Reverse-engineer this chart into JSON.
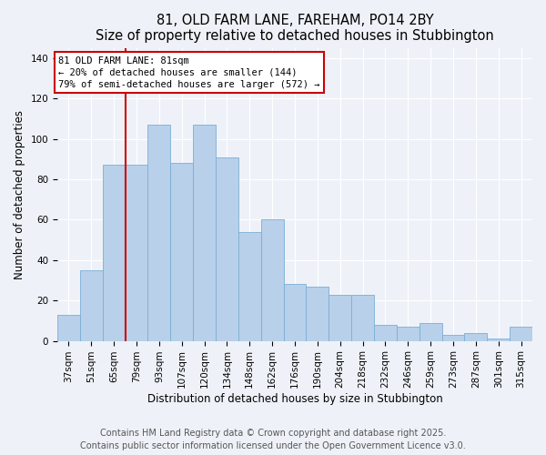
{
  "title": "81, OLD FARM LANE, FAREHAM, PO14 2BY",
  "subtitle": "Size of property relative to detached houses in Stubbington",
  "xlabel": "Distribution of detached houses by size in Stubbington",
  "ylabel": "Number of detached properties",
  "categories": [
    "37sqm",
    "51sqm",
    "65sqm",
    "79sqm",
    "93sqm",
    "107sqm",
    "120sqm",
    "134sqm",
    "148sqm",
    "162sqm",
    "176sqm",
    "190sqm",
    "204sqm",
    "218sqm",
    "232sqm",
    "246sqm",
    "259sqm",
    "273sqm",
    "287sqm",
    "301sqm",
    "315sqm"
  ],
  "values": [
    13,
    35,
    87,
    87,
    107,
    88,
    107,
    91,
    54,
    60,
    28,
    27,
    23,
    23,
    8,
    7,
    9,
    3,
    4,
    1,
    7
  ],
  "bar_color": "#b8d0ea",
  "bar_edge_color": "#7aaed6",
  "vline_x_index": 3,
  "vline_color": "#cc0000",
  "box_text_line1": "81 OLD FARM LANE: 81sqm",
  "box_text_line2": "← 20% of detached houses are smaller (144)",
  "box_text_line3": "79% of semi-detached houses are larger (572) →",
  "box_color": "#cc0000",
  "box_fill": "#ffffff",
  "ylim": [
    0,
    145
  ],
  "yticks": [
    0,
    20,
    40,
    60,
    80,
    100,
    120,
    140
  ],
  "footnote1": "Contains HM Land Registry data © Crown copyright and database right 2025.",
  "footnote2": "Contains public sector information licensed under the Open Government Licence v3.0.",
  "bg_color": "#eef2f8",
  "plot_bg_color": "#eef2f8",
  "title_fontsize": 10.5,
  "axis_label_fontsize": 8.5,
  "tick_fontsize": 7.5,
  "footnote_fontsize": 7
}
